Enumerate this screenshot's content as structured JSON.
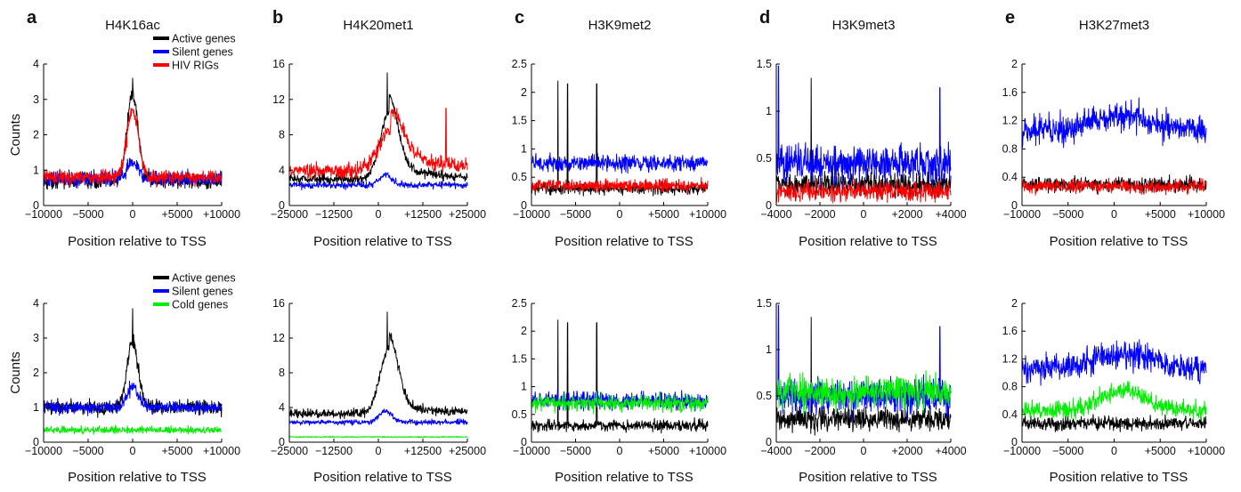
{
  "colors": {
    "active": "#000000",
    "silent": "#0000ff",
    "hiv": "#ff0000",
    "cold": "#00ee00"
  },
  "shared": {
    "xlabel": "Position relative to TSS",
    "ylabel": "Counts",
    "legend_top": [
      {
        "label": "Active genes",
        "color": "#000000"
      },
      {
        "label": "Silent genes",
        "color": "#0000ff"
      },
      {
        "label": "HIV RIGs",
        "color": "#ff0000"
      }
    ],
    "legend_bottom": [
      {
        "label": "Active genes",
        "color": "#000000"
      },
      {
        "label": "Silent genes",
        "color": "#0000ff"
      },
      {
        "label": "Cold genes",
        "color": "#00ee00"
      }
    ]
  },
  "chart_data": [
    {
      "panel": "a",
      "row": "top",
      "type": "line",
      "title": "H4K16ac",
      "letter": "a",
      "xlim": [
        -10000,
        10000
      ],
      "ylim": [
        0,
        4
      ],
      "xticks": [
        -10000,
        -5000,
        0,
        5000,
        10000
      ],
      "xticklabels": [
        "−10000",
        "−5000",
        "0",
        "+5000",
        "+10000"
      ],
      "yticks": [
        0,
        1,
        2,
        3,
        4
      ],
      "yticklabels": [
        "0",
        "1",
        "2",
        "3",
        "4"
      ],
      "series": [
        {
          "name": "Active genes",
          "color": "#000000",
          "profile": {
            "base": 0.7,
            "peak": 2.4,
            "center": 0,
            "width": 900,
            "noise": 0.22,
            "spikes": [
              [
                0,
                3.6
              ]
            ]
          }
        },
        {
          "name": "Silent genes",
          "color": "#0000ff",
          "profile": {
            "base": 0.75,
            "peak": 0.45,
            "center": 0,
            "width": 1000,
            "noise": 0.2,
            "spikes": []
          }
        },
        {
          "name": "HIV RIGs",
          "color": "#ff0000",
          "profile": {
            "base": 0.8,
            "peak": 1.9,
            "center": 0,
            "width": 900,
            "noise": 0.2,
            "spikes": []
          }
        }
      ]
    },
    {
      "panel": "b",
      "row": "top",
      "type": "line",
      "title": "H4K20met1",
      "letter": "b",
      "xlim": [
        -25000,
        25000
      ],
      "ylim": [
        0,
        16
      ],
      "xticks": [
        -25000,
        -12500,
        0,
        12500,
        25000
      ],
      "xticklabels": [
        "−25000",
        "−12500",
        "0",
        "+12500",
        "+25000"
      ],
      "yticks": [
        0,
        4,
        8,
        12,
        16
      ],
      "yticklabels": [
        "0",
        "4",
        "8",
        "12",
        "16"
      ],
      "series": [
        {
          "name": "Active genes",
          "color": "#000000",
          "profile": {
            "base": 3,
            "peak": 7.5,
            "center": 3000,
            "width": 3500,
            "tail": 2.0,
            "noise": 0.5,
            "spikes": [
              [
                2500,
                15
              ]
            ]
          }
        },
        {
          "name": "Silent genes",
          "color": "#0000ff",
          "profile": {
            "base": 2.3,
            "peak": 1.2,
            "center": 2000,
            "width": 2500,
            "noise": 0.35,
            "spikes": []
          }
        },
        {
          "name": "HIV RIGs",
          "color": "#ff0000",
          "profile": {
            "base": 3.9,
            "peak": 4.5,
            "center": 3500,
            "width": 5000,
            "tail": 2.5,
            "noise": 0.8,
            "spikes": [
              [
                19000,
                11
              ]
            ]
          }
        }
      ]
    },
    {
      "panel": "c",
      "row": "top",
      "type": "line",
      "title": "H3K9met2",
      "letter": "c",
      "xlim": [
        -10000,
        10000
      ],
      "ylim": [
        0,
        2.5
      ],
      "xticks": [
        -10000,
        -5000,
        0,
        5000,
        10000
      ],
      "xticklabels": [
        "−10000",
        "−5000",
        "0",
        "+5000",
        "+10000"
      ],
      "yticks": [
        0,
        0.5,
        1,
        1.5,
        2,
        2.5
      ],
      "yticklabels": [
        "0",
        "0.5",
        "1",
        "1.5",
        "2",
        "2.5"
      ],
      "series": [
        {
          "name": "Active genes",
          "color": "#000000",
          "profile": {
            "base": 0.3,
            "peak": 0,
            "center": 0,
            "width": 1000,
            "noise": 0.1,
            "spikes": [
              [
                -7000,
                2.2
              ],
              [
                -5900,
                2.15
              ],
              [
                -2600,
                2.15
              ]
            ]
          }
        },
        {
          "name": "Silent genes",
          "color": "#0000ff",
          "profile": {
            "base": 0.75,
            "peak": 0,
            "center": 0,
            "width": 1000,
            "noise": 0.14,
            "spikes": []
          }
        },
        {
          "name": "HIV RIGs",
          "color": "#ff0000",
          "profile": {
            "base": 0.35,
            "peak": 0,
            "center": 0,
            "width": 1000,
            "noise": 0.1,
            "spikes": []
          }
        }
      ]
    },
    {
      "panel": "d",
      "row": "top",
      "type": "line",
      "title": "H3K9met3",
      "letter": "d",
      "xlim": [
        -4000,
        4000
      ],
      "ylim": [
        0,
        1.5
      ],
      "xticks": [
        -4000,
        -2000,
        0,
        2000,
        4000
      ],
      "xticklabels": [
        "−4000",
        "−2000",
        "0",
        "+2000",
        "+4000"
      ],
      "yticks": [
        0,
        0.5,
        1,
        1.5
      ],
      "yticklabels": [
        "0",
        "0.5",
        "1",
        "1.5"
      ],
      "series": [
        {
          "name": "Active genes",
          "color": "#000000",
          "profile": {
            "base": 0.22,
            "peak": 0,
            "center": 0,
            "width": 500,
            "noise": 0.12,
            "spikes": [
              [
                -2400,
                1.35
              ]
            ]
          }
        },
        {
          "name": "Silent genes",
          "color": "#0000ff",
          "profile": {
            "base": 0.45,
            "peak": 0,
            "center": 0,
            "width": 500,
            "noise": 0.2,
            "spikes": [
              [
                -3900,
                1.48
              ],
              [
                3500,
                1.25
              ]
            ]
          }
        },
        {
          "name": "HIV RIGs",
          "color": "#ff0000",
          "profile": {
            "base": 0.15,
            "peak": 0,
            "center": 0,
            "width": 500,
            "noise": 0.1,
            "spikes": []
          }
        }
      ]
    },
    {
      "panel": "e",
      "row": "top",
      "type": "line",
      "title": "H3K27met3",
      "letter": "e",
      "xlim": [
        -10000,
        10000
      ],
      "ylim": [
        0,
        2
      ],
      "xticks": [
        -10000,
        -5000,
        0,
        5000,
        10000
      ],
      "xticklabels": [
        "−10000",
        "−5000",
        "0",
        "+5000",
        "+10000"
      ],
      "yticks": [
        0,
        0.4,
        0.8,
        1.2,
        1.6,
        2
      ],
      "yticklabels": [
        "0",
        "0.4",
        "0.8",
        "1.2",
        "1.6",
        "2"
      ],
      "series": [
        {
          "name": "Active genes",
          "color": "#000000",
          "profile": {
            "base": 0.3,
            "peak": 0,
            "center": 0,
            "width": 1000,
            "noise": 0.1,
            "spikes": []
          }
        },
        {
          "name": "Silent genes",
          "color": "#0000ff",
          "profile": {
            "base": 1.05,
            "peak": 0.2,
            "center": 1000,
            "width": 5000,
            "noise": 0.2,
            "spikes": []
          }
        },
        {
          "name": "HIV RIGs",
          "color": "#ff0000",
          "profile": {
            "base": 0.27,
            "peak": 0,
            "center": 0,
            "width": 1000,
            "noise": 0.09,
            "spikes": []
          }
        }
      ]
    },
    {
      "panel": "a",
      "row": "bottom",
      "type": "line",
      "title": "",
      "letter": "",
      "xlim": [
        -10000,
        10000
      ],
      "ylim": [
        0,
        4
      ],
      "xticks": [
        -10000,
        -5000,
        0,
        5000,
        10000
      ],
      "xticklabels": [
        "−10000",
        "−5000",
        "0",
        "+5000",
        "+10000"
      ],
      "yticks": [
        0,
        1,
        2,
        3,
        4
      ],
      "yticklabels": [
        "0",
        "1",
        "2",
        "3",
        "4"
      ],
      "series": [
        {
          "name": "Active genes",
          "color": "#000000",
          "profile": {
            "base": 1.0,
            "peak": 1.9,
            "center": 0,
            "width": 900,
            "noise": 0.2,
            "spikes": [
              [
                0,
                3.85
              ]
            ]
          }
        },
        {
          "name": "Silent genes",
          "color": "#0000ff",
          "profile": {
            "base": 1.0,
            "peak": 0.6,
            "center": 0,
            "width": 900,
            "noise": 0.17,
            "spikes": []
          }
        },
        {
          "name": "Cold genes",
          "color": "#00ee00",
          "profile": {
            "base": 0.35,
            "peak": 0,
            "center": 0,
            "width": 1000,
            "noise": 0.1,
            "spikes": []
          }
        }
      ]
    },
    {
      "panel": "b",
      "row": "bottom",
      "type": "line",
      "title": "",
      "letter": "",
      "xlim": [
        -25000,
        25000
      ],
      "ylim": [
        0,
        16
      ],
      "xticks": [
        -25000,
        -12500,
        0,
        12500,
        25000
      ],
      "xticklabels": [
        "−25000",
        "−12500",
        "0",
        "+12500",
        "+25000"
      ],
      "yticks": [
        0,
        4,
        8,
        12,
        16
      ],
      "yticklabels": [
        "0",
        "4",
        "8",
        "12",
        "16"
      ],
      "series": [
        {
          "name": "Active genes",
          "color": "#000000",
          "profile": {
            "base": 3.3,
            "peak": 7.5,
            "center": 3000,
            "width": 3500,
            "tail": 1.5,
            "noise": 0.5,
            "spikes": [
              [
                2500,
                15
              ]
            ]
          }
        },
        {
          "name": "Silent genes",
          "color": "#0000ff",
          "profile": {
            "base": 2.3,
            "peak": 1.3,
            "center": 2000,
            "width": 2500,
            "noise": 0.3,
            "spikes": []
          }
        },
        {
          "name": "Cold genes",
          "color": "#00ee00",
          "profile": {
            "base": 0.6,
            "peak": 0,
            "center": 0,
            "width": 1000,
            "noise": 0.06,
            "spikes": []
          }
        }
      ]
    },
    {
      "panel": "c",
      "row": "bottom",
      "type": "line",
      "title": "",
      "letter": "",
      "xlim": [
        -10000,
        10000
      ],
      "ylim": [
        0,
        2.5
      ],
      "xticks": [
        -10000,
        -5000,
        0,
        5000,
        10000
      ],
      "xticklabels": [
        "−10000",
        "−5000",
        "0",
        "+5000",
        "+10000"
      ],
      "yticks": [
        0,
        0.5,
        1,
        1.5,
        2,
        2.5
      ],
      "yticklabels": [
        "0",
        "0.5",
        "1",
        "1.5",
        "2",
        "2.5"
      ],
      "series": [
        {
          "name": "Active genes",
          "color": "#000000",
          "profile": {
            "base": 0.3,
            "peak": 0,
            "center": 0,
            "width": 1000,
            "noise": 0.1,
            "spikes": [
              [
                -7000,
                2.2
              ],
              [
                -5900,
                2.15
              ],
              [
                -2600,
                2.15
              ]
            ]
          }
        },
        {
          "name": "Silent genes",
          "color": "#0000ff",
          "profile": {
            "base": 0.75,
            "peak": 0,
            "center": 0,
            "width": 1000,
            "noise": 0.15,
            "spikes": []
          }
        },
        {
          "name": "Cold genes",
          "color": "#00ee00",
          "profile": {
            "base": 0.7,
            "peak": 0,
            "center": 0,
            "width": 1000,
            "noise": 0.14,
            "spikes": []
          }
        }
      ]
    },
    {
      "panel": "d",
      "row": "bottom",
      "type": "line",
      "title": "",
      "letter": "",
      "xlim": [
        -4000,
        4000
      ],
      "ylim": [
        0,
        1.5
      ],
      "xticks": [
        -4000,
        -2000,
        0,
        2000,
        4000
      ],
      "xticklabels": [
        "−4000",
        "−2000",
        "0",
        "+2000",
        "+4000"
      ],
      "yticks": [
        0,
        0.5,
        1,
        1.5
      ],
      "yticklabels": [
        "0",
        "0.5",
        "1",
        "1.5"
      ],
      "series": [
        {
          "name": "Active genes",
          "color": "#000000",
          "profile": {
            "base": 0.25,
            "peak": 0,
            "center": 0,
            "width": 500,
            "noise": 0.12,
            "spikes": [
              [
                -2400,
                1.35
              ]
            ]
          }
        },
        {
          "name": "Silent genes",
          "color": "#0000ff",
          "profile": {
            "base": 0.5,
            "peak": 0,
            "center": 0,
            "width": 500,
            "noise": 0.18,
            "spikes": [
              [
                -3900,
                1.48
              ],
              [
                3500,
                1.25
              ]
            ]
          }
        },
        {
          "name": "Cold genes",
          "color": "#00ee00",
          "profile": {
            "base": 0.55,
            "peak": 0,
            "center": 0,
            "width": 500,
            "noise": 0.17,
            "spikes": []
          }
        }
      ]
    },
    {
      "panel": "e",
      "row": "bottom",
      "type": "line",
      "title": "",
      "letter": "",
      "xlim": [
        -10000,
        10000
      ],
      "ylim": [
        0,
        2
      ],
      "xticks": [
        -10000,
        -5000,
        0,
        5000,
        10000
      ],
      "xticklabels": [
        "−10000",
        "−5000",
        "0",
        "+5000",
        "+10000"
      ],
      "yticks": [
        0,
        0.4,
        0.8,
        1.2,
        1.6,
        2
      ],
      "yticklabels": [
        "0",
        "0.4",
        "0.8",
        "1.2",
        "1.6",
        "2"
      ],
      "series": [
        {
          "name": "Active genes",
          "color": "#000000",
          "profile": {
            "base": 0.27,
            "peak": 0,
            "center": 0,
            "width": 1000,
            "noise": 0.09,
            "spikes": []
          }
        },
        {
          "name": "Silent genes",
          "color": "#0000ff",
          "profile": {
            "base": 1.05,
            "peak": 0.2,
            "center": 1000,
            "width": 5000,
            "noise": 0.2,
            "spikes": []
          }
        },
        {
          "name": "Cold genes",
          "color": "#00ee00",
          "profile": {
            "base": 0.45,
            "peak": 0.3,
            "center": 1000,
            "width": 3500,
            "noise": 0.12,
            "spikes": []
          }
        }
      ]
    }
  ]
}
